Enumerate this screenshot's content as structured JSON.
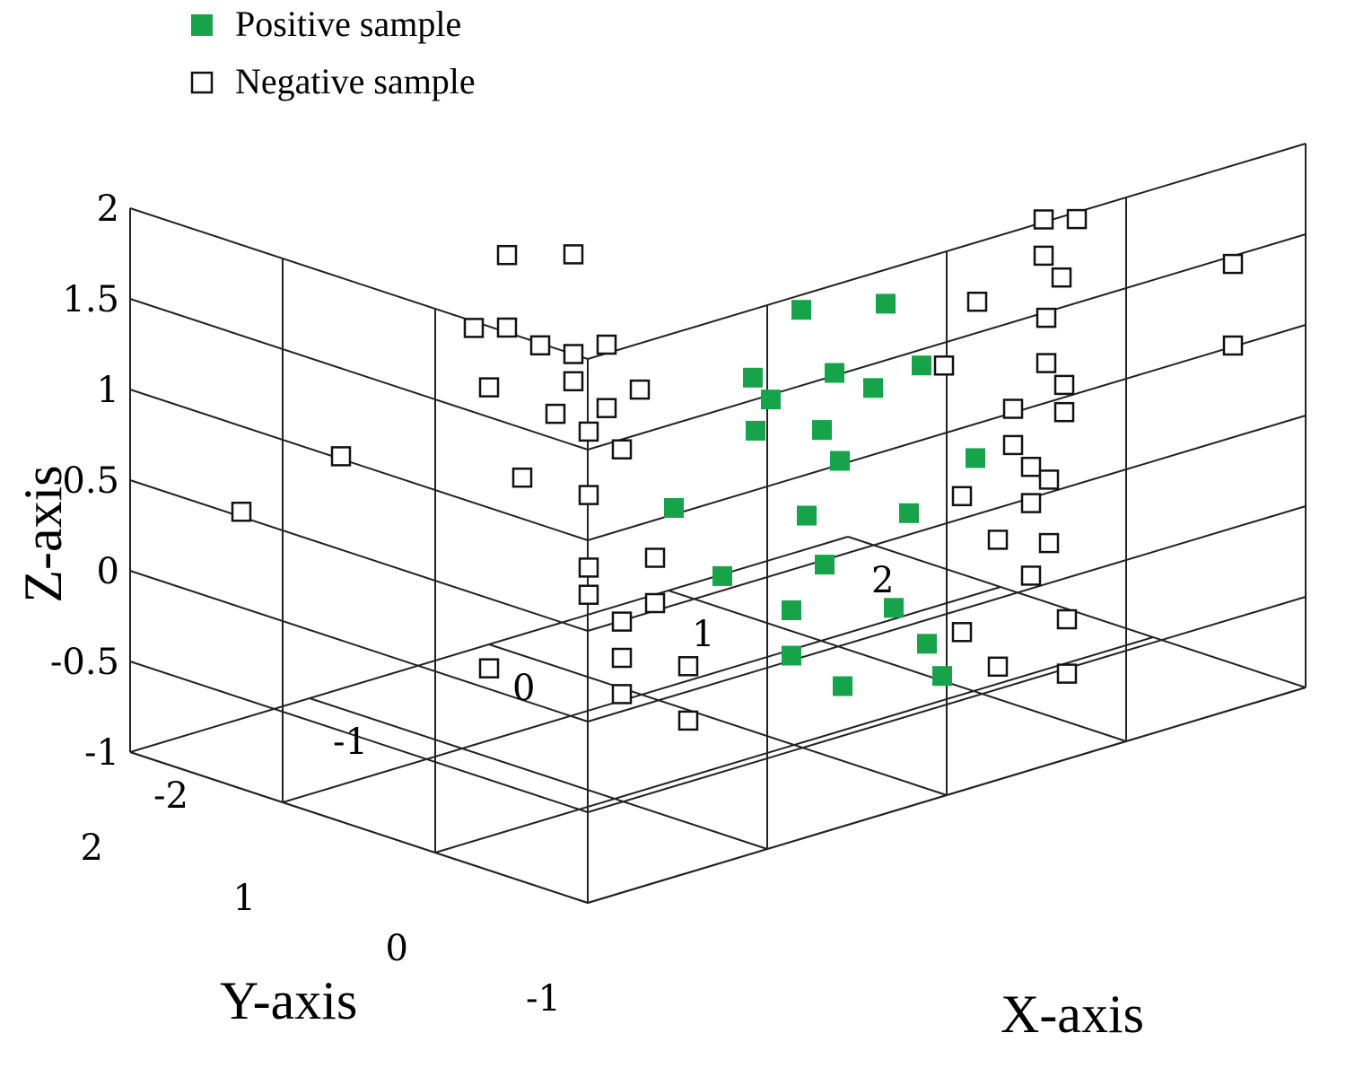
{
  "chart_data": {
    "type": "scatter",
    "projection": "3d",
    "xlabel": "X-axis",
    "ylabel": "Y-axis",
    "zlabel": "Z-axis",
    "xlim": [
      -2,
      2
    ],
    "ylim": [
      -1,
      2
    ],
    "zlim": [
      -1,
      2
    ],
    "x_ticks": [
      "-2",
      "-1",
      "0",
      "1",
      "2"
    ],
    "y_ticks": [
      "-1",
      "0",
      "1",
      "2"
    ],
    "z_ticks": [
      "-1",
      "-0.5",
      "0",
      "0.5",
      "1",
      "1.5",
      "2"
    ],
    "grid": true,
    "legend_position": "top-left",
    "colors": {
      "positive": "#16a34a",
      "negative_edge": "#111111",
      "grid": "#222222"
    },
    "series": [
      {
        "name": "Positive sample",
        "marker": "filled-square",
        "points": [
          [
            -0.3,
            -0.4,
            1.6
          ],
          [
            0.0,
            -0.6,
            1.6
          ],
          [
            -0.2,
            -0.5,
            1.25
          ],
          [
            0.2,
            -0.6,
            1.2
          ],
          [
            -0.4,
            -0.2,
            1.2
          ],
          [
            -0.3,
            -0.2,
            1.05
          ],
          [
            0.1,
            -0.4,
            1.05
          ],
          [
            -0.1,
            -0.3,
            0.85
          ],
          [
            -0.3,
            -0.1,
            0.85
          ],
          [
            0.0,
            -0.3,
            0.65
          ],
          [
            0.5,
            -0.6,
            0.6
          ],
          [
            -0.5,
            0.2,
            0.4
          ],
          [
            -0.1,
            -0.2,
            0.35
          ],
          [
            0.3,
            -0.4,
            0.3
          ],
          [
            -0.4,
            0.0,
            0.05
          ],
          [
            0.0,
            -0.2,
            0.05
          ],
          [
            -0.1,
            -0.1,
            -0.2
          ],
          [
            0.3,
            -0.3,
            -0.25
          ],
          [
            -0.1,
            -0.1,
            -0.45
          ],
          [
            0.4,
            -0.4,
            -0.45
          ],
          [
            0.4,
            -0.5,
            -0.6
          ],
          [
            0.1,
            -0.2,
            -0.65
          ]
        ]
      },
      {
        "name": "Negative sample",
        "marker": "hollow-square",
        "points": [
          [
            -1.0,
            0.7,
            1.8
          ],
          [
            -0.8,
            0.5,
            1.8
          ],
          [
            -1.1,
            0.8,
            1.4
          ],
          [
            -1.0,
            0.7,
            1.4
          ],
          [
            -0.9,
            0.6,
            1.3
          ],
          [
            -0.7,
            0.4,
            1.3
          ],
          [
            -0.8,
            0.5,
            1.25
          ],
          [
            -1.1,
            0.7,
            1.1
          ],
          [
            -0.8,
            0.5,
            1.1
          ],
          [
            -0.6,
            0.3,
            1.05
          ],
          [
            -0.9,
            0.5,
            0.95
          ],
          [
            -0.7,
            0.4,
            0.95
          ],
          [
            -0.8,
            0.4,
            0.85
          ],
          [
            -1.5,
            1.2,
            0.7
          ],
          [
            -0.7,
            0.3,
            0.75
          ],
          [
            -1.0,
            0.6,
            0.6
          ],
          [
            -0.8,
            0.4,
            0.5
          ],
          [
            -1.8,
            1.5,
            0.4
          ],
          [
            -0.6,
            0.2,
            0.15
          ],
          [
            -0.8,
            0.4,
            0.1
          ],
          [
            -0.8,
            0.4,
            -0.05
          ],
          [
            -0.6,
            0.2,
            -0.1
          ],
          [
            -0.7,
            0.3,
            -0.2
          ],
          [
            -1.1,
            0.7,
            -0.45
          ],
          [
            -0.7,
            0.3,
            -0.4
          ],
          [
            -0.5,
            0.1,
            -0.45
          ],
          [
            -0.7,
            0.3,
            -0.6
          ],
          [
            -0.5,
            0.1,
            -0.75
          ],
          [
            0.8,
            -0.7,
            1.85
          ],
          [
            0.9,
            -0.8,
            1.85
          ],
          [
            0.8,
            -0.7,
            1.65
          ],
          [
            0.9,
            -0.7,
            1.5
          ],
          [
            1.6,
            -1.0,
            1.45
          ],
          [
            0.6,
            -0.5,
            1.4
          ],
          [
            0.9,
            -0.6,
            1.25
          ],
          [
            0.5,
            -0.4,
            1.05
          ],
          [
            1.6,
            -1.0,
            1.0
          ],
          [
            0.9,
            -0.6,
            1.0
          ],
          [
            1.0,
            -0.6,
            0.85
          ],
          [
            0.8,
            -0.5,
            0.75
          ],
          [
            1.0,
            -0.6,
            0.7
          ],
          [
            0.8,
            -0.5,
            0.55
          ],
          [
            0.9,
            -0.5,
            0.4
          ],
          [
            0.6,
            -0.4,
            0.3
          ],
          [
            1.0,
            -0.5,
            0.3
          ],
          [
            0.9,
            -0.5,
            0.2
          ],
          [
            0.8,
            -0.4,
            0.0
          ],
          [
            1.0,
            -0.5,
            -0.05
          ],
          [
            0.9,
            -0.5,
            -0.2
          ],
          [
            0.6,
            -0.4,
            -0.45
          ],
          [
            1.1,
            -0.5,
            -0.5
          ],
          [
            0.8,
            -0.4,
            -0.7
          ],
          [
            1.1,
            -0.5,
            -0.8
          ]
        ]
      }
    ]
  }
}
